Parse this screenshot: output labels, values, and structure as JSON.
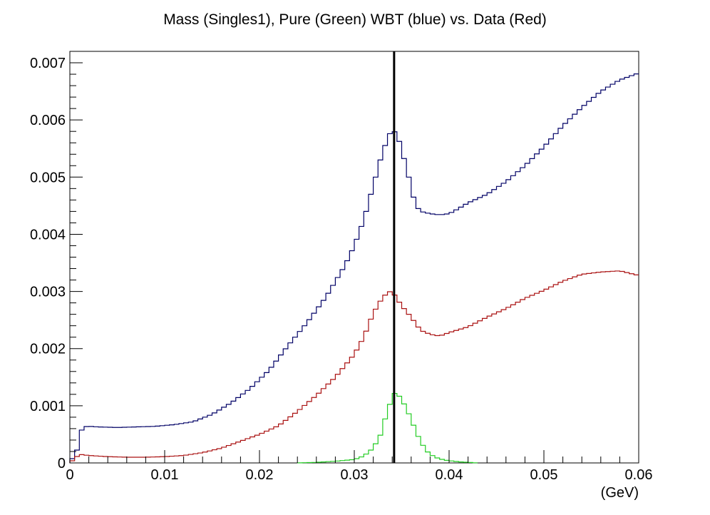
{
  "chart_data": {
    "type": "line",
    "title": "Mass (Singles1), Pure (Green) WBT (blue) vs. Data (Red)",
    "xlabel": "(GeV)",
    "ylabel": "",
    "xlim": [
      0,
      0.06
    ],
    "ylim": [
      0,
      0.0072
    ],
    "x_ticks": [
      "0",
      "0.01",
      "0.02",
      "0.03",
      "0.04",
      "0.05",
      "0.06"
    ],
    "y_ticks": [
      "0",
      "0.001",
      "0.002",
      "0.003",
      "0.004",
      "0.005",
      "0.006",
      "0.007"
    ],
    "grid": false,
    "vertical_marker": 0.0342,
    "series": [
      {
        "color": "#000066",
        "step": true,
        "points": [
          [
            0.0,
            0.0
          ],
          [
            0.001,
            0.0003
          ],
          [
            0.0013,
            0.00063
          ],
          [
            0.002,
            0.00064
          ],
          [
            0.003,
            0.00063
          ],
          [
            0.005,
            0.00062
          ],
          [
            0.007,
            0.00063
          ],
          [
            0.009,
            0.00064
          ],
          [
            0.011,
            0.00067
          ],
          [
            0.013,
            0.00072
          ],
          [
            0.015,
            0.00085
          ],
          [
            0.017,
            0.00105
          ],
          [
            0.019,
            0.0013
          ],
          [
            0.021,
            0.00162
          ],
          [
            0.023,
            0.00205
          ],
          [
            0.025,
            0.00245
          ],
          [
            0.027,
            0.0029
          ],
          [
            0.029,
            0.00345
          ],
          [
            0.03,
            0.0038
          ],
          [
            0.031,
            0.00425
          ],
          [
            0.032,
            0.00485
          ],
          [
            0.033,
            0.00545
          ],
          [
            0.0338,
            0.00578
          ],
          [
            0.0345,
            0.0058
          ],
          [
            0.035,
            0.00545
          ],
          [
            0.0355,
            0.0052
          ],
          [
            0.036,
            0.0048
          ],
          [
            0.0365,
            0.0045
          ],
          [
            0.037,
            0.0044
          ],
          [
            0.038,
            0.00436
          ],
          [
            0.039,
            0.00434
          ],
          [
            0.04,
            0.00436
          ],
          [
            0.041,
            0.00445
          ],
          [
            0.042,
            0.00455
          ],
          [
            0.044,
            0.0047
          ],
          [
            0.046,
            0.00492
          ],
          [
            0.048,
            0.0052
          ],
          [
            0.05,
            0.00553
          ],
          [
            0.052,
            0.0059
          ],
          [
            0.054,
            0.00622
          ],
          [
            0.056,
            0.0065
          ],
          [
            0.058,
            0.0067
          ],
          [
            0.06,
            0.00682
          ]
        ]
      },
      {
        "color": "#aa1111",
        "step": true,
        "points": [
          [
            0.0,
            0.0
          ],
          [
            0.001,
            0.00015
          ],
          [
            0.002,
            0.00013
          ],
          [
            0.004,
            0.00011
          ],
          [
            0.006,
            0.0001
          ],
          [
            0.008,
            0.0001
          ],
          [
            0.01,
            0.00011
          ],
          [
            0.012,
            0.00013
          ],
          [
            0.014,
            0.00018
          ],
          [
            0.016,
            0.00026
          ],
          [
            0.018,
            0.00038
          ],
          [
            0.02,
            0.0005
          ],
          [
            0.022,
            0.00065
          ],
          [
            0.024,
            0.0009
          ],
          [
            0.026,
            0.00118
          ],
          [
            0.028,
            0.0015
          ],
          [
            0.03,
            0.0019
          ],
          [
            0.031,
            0.0022
          ],
          [
            0.032,
            0.00262
          ],
          [
            0.033,
            0.0029
          ],
          [
            0.0337,
            0.003
          ],
          [
            0.0342,
            0.00295
          ],
          [
            0.035,
            0.00275
          ],
          [
            0.036,
            0.00255
          ],
          [
            0.037,
            0.00232
          ],
          [
            0.038,
            0.00225
          ],
          [
            0.039,
            0.00222
          ],
          [
            0.04,
            0.00228
          ],
          [
            0.042,
            0.00238
          ],
          [
            0.044,
            0.00255
          ],
          [
            0.046,
            0.0027
          ],
          [
            0.048,
            0.00288
          ],
          [
            0.05,
            0.00302
          ],
          [
            0.052,
            0.00318
          ],
          [
            0.054,
            0.0033
          ],
          [
            0.056,
            0.00334
          ],
          [
            0.058,
            0.00336
          ],
          [
            0.06,
            0.00328
          ]
        ]
      },
      {
        "color": "#22cc22",
        "step": true,
        "points": [
          [
            0.024,
            0.0
          ],
          [
            0.026,
            1e-05
          ],
          [
            0.028,
            3e-05
          ],
          [
            0.03,
            6e-05
          ],
          [
            0.031,
            0.00012
          ],
          [
            0.032,
            0.00026
          ],
          [
            0.0328,
            0.0005
          ],
          [
            0.0333,
            0.0008
          ],
          [
            0.0338,
            0.00105
          ],
          [
            0.0342,
            0.00122
          ],
          [
            0.0347,
            0.00118
          ],
          [
            0.0352,
            0.00105
          ],
          [
            0.0357,
            0.00088
          ],
          [
            0.0362,
            0.00068
          ],
          [
            0.0367,
            0.00048
          ],
          [
            0.0372,
            0.00032
          ],
          [
            0.0378,
            0.00018
          ],
          [
            0.0385,
            0.0001
          ],
          [
            0.0395,
            5e-05
          ],
          [
            0.041,
            2e-05
          ],
          [
            0.043,
            0.0
          ]
        ]
      }
    ]
  }
}
